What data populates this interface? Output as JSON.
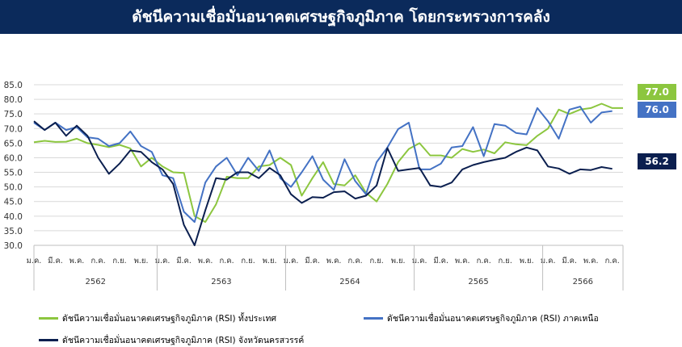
{
  "title": "ดัชนีความเชื่อมั่นอนาคตเศรษฐกิจภูมิภาค โดยกระทรวงการคลัง",
  "chart_data": {
    "type": "line",
    "ylim": [
      30,
      85
    ],
    "yticks": [
      "30.0",
      "35.0",
      "40.0",
      "45.0",
      "50.0",
      "55.0",
      "60.0",
      "65.0",
      "70.0",
      "75.0",
      "80.0",
      "85.0"
    ],
    "xtick_labels": [
      "ม.ค.",
      "มี.ค.",
      "พ.ค.",
      "ก.ค.",
      "ก.ย.",
      "พ.ย.",
      "ม.ค.",
      "มี.ค.",
      "พ.ค.",
      "ก.ค.",
      "ก.ย.",
      "พ.ย.",
      "ม.ค.",
      "มี.ค.",
      "พ.ค.",
      "ก.ค.",
      "ก.ย.",
      "พ.ย.",
      "ม.ค.",
      "มี.ค.",
      "พ.ค.",
      "ก.ค.",
      "ก.ย.",
      "พ.ย.",
      "ม.ค.",
      "มี.ค.",
      "พ.ค.",
      "ก.ค."
    ],
    "years": [
      "2562",
      "2563",
      "2564",
      "2565",
      "2566"
    ],
    "grid": true,
    "legend_position": "bottom",
    "series": [
      {
        "name": "ดัชนีความเชื่อมั่นอนาคตเศรษฐกิจภูมิภาค (RSI) ทั้งประเทศ",
        "color": "#8cc63f",
        "end_label": "77.0",
        "values": [
          65.3,
          65.8,
          65.4,
          65.5,
          66.5,
          65.0,
          64.4,
          63.6,
          64.4,
          63.2,
          57.0,
          60.0,
          57.0,
          55.0,
          54.8,
          40.0,
          38.0,
          44.0,
          53.5,
          53.0,
          53.0,
          57.0,
          57.5,
          60.0,
          57.5,
          47.0,
          53.0,
          58.5,
          51.0,
          50.5,
          54.0,
          48.0,
          45.0,
          51.0,
          58.5,
          63.0,
          65.0,
          60.8,
          60.8,
          60.0,
          63.0,
          62.0,
          62.8,
          61.5,
          65.3,
          64.6,
          64.3,
          67.5,
          70.0,
          76.5,
          75.0,
          76.5,
          77.0,
          78.5,
          77.0,
          77.0
        ]
      },
      {
        "name": "ดัชนีความเชื่อมั่นอนาคตเศรษฐกิจภูมิภาค (RSI) ภาคเหนือ",
        "color": "#4472c4",
        "end_label": "76.0",
        "values": [
          72.0,
          69.5,
          72.0,
          69.5,
          70.5,
          67.0,
          66.5,
          64.0,
          65.0,
          69.0,
          64.0,
          62.0,
          54.0,
          53.0,
          41.5,
          38.0,
          51.5,
          57.0,
          60.0,
          54.0,
          60.0,
          55.5,
          62.5,
          53.0,
          50.0,
          55.0,
          60.5,
          52.5,
          49.0,
          59.5,
          52.0,
          47.5,
          58.5,
          63.5,
          69.8,
          72.0,
          56.0,
          56.0,
          58.0,
          63.5,
          64.0,
          70.5,
          60.5,
          71.5,
          71.0,
          68.5,
          68.0,
          77.0,
          72.5,
          66.5,
          76.5,
          77.5,
          72.0,
          75.5,
          76.0
        ]
      },
      {
        "name": "ดัชนีความเชื่อมั่นอนาคตเศรษฐกิจภูมิภาค (RSI) จังหวัดนครสวรรค์",
        "color": "#0b1f4f",
        "end_label": "56.2",
        "values": [
          72.5,
          69.5,
          72.0,
          67.5,
          71.0,
          67.5,
          60.0,
          54.5,
          58.0,
          62.5,
          62.0,
          58.5,
          56.0,
          51.0,
          37.0,
          30.0,
          42.0,
          53.0,
          52.5,
          55.0,
          55.0,
          53.0,
          56.5,
          54.0,
          47.5,
          44.5,
          46.5,
          46.3,
          48.2,
          48.5,
          46.0,
          47.0,
          50.5,
          63.3,
          55.5,
          56.0,
          56.5,
          50.5,
          50.0,
          51.5,
          56.0,
          57.5,
          58.5,
          59.3,
          60.0,
          62.0,
          63.5,
          62.5,
          57.0,
          56.3,
          54.5,
          56.0,
          55.8,
          56.8,
          56.2
        ]
      }
    ]
  }
}
